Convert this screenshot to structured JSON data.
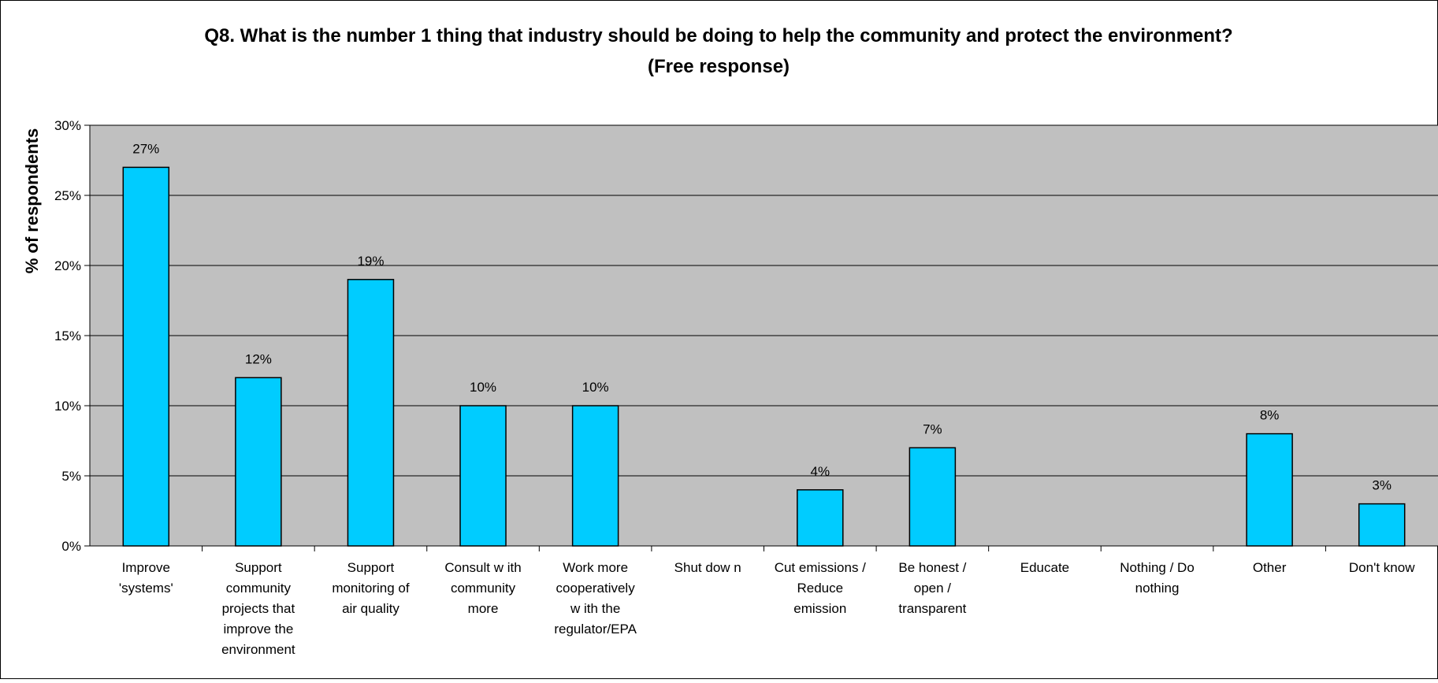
{
  "chart_data": {
    "type": "bar",
    "title": "Q8. What is the number 1 thing that industry should be doing to help the community and protect the environment?",
    "subtitle": "(Free response)",
    "xlabel": "",
    "ylabel": "% of respondents",
    "ylim": [
      0,
      30
    ],
    "yticks": [
      "0%",
      "5%",
      "10%",
      "15%",
      "20%",
      "25%",
      "30%"
    ],
    "grid": true,
    "legend": "none",
    "categories": [
      [
        "Improve",
        "'systems'"
      ],
      [
        "Support",
        "community",
        "projects that",
        "improve the",
        "environment"
      ],
      [
        "Support",
        "monitoring of",
        "air quality"
      ],
      [
        "Consult w ith",
        "community",
        "more"
      ],
      [
        "Work more",
        "cooperatively",
        "w ith the",
        "regulator/EPA"
      ],
      [
        "Shut dow n"
      ],
      [
        "Cut emissions /",
        "Reduce",
        "emission"
      ],
      [
        "Be honest /",
        "open /",
        "transparent"
      ],
      [
        "Educate"
      ],
      [
        "Nothing / Do",
        "nothing"
      ],
      [
        "Other"
      ],
      [
        "Don't know"
      ]
    ],
    "values": [
      27,
      12,
      19,
      10,
      10,
      0,
      4,
      7,
      0,
      0,
      8,
      3
    ],
    "data_labels": [
      "27%",
      "12%",
      "19%",
      "10%",
      "10%",
      "",
      "4%",
      "7%",
      "",
      "",
      "8%",
      "3%"
    ],
    "colors": {
      "bar": "#00ccff",
      "plot_background": "#c0c0c0",
      "grid": "#000000"
    }
  }
}
